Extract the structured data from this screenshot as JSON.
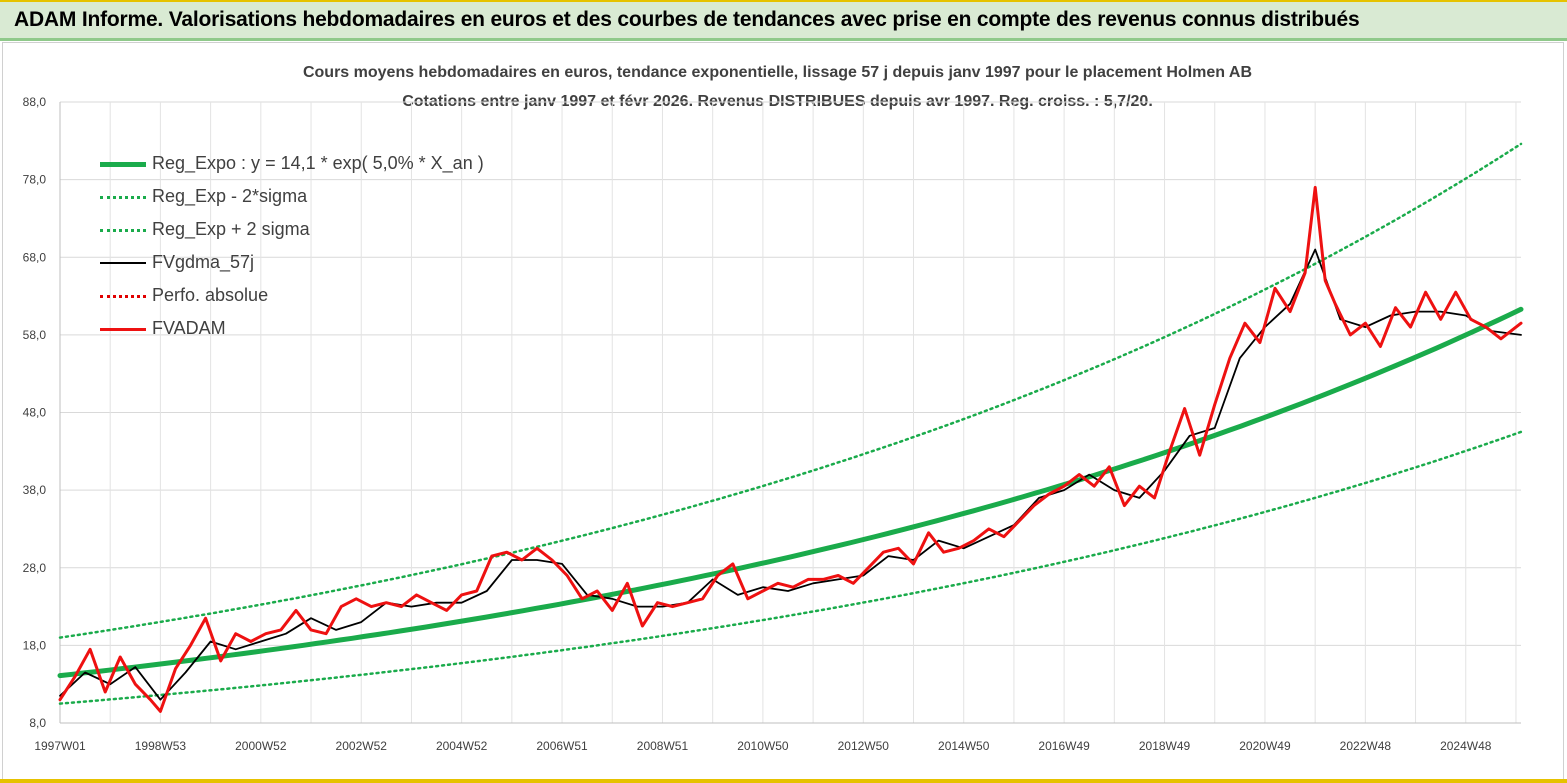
{
  "header": {
    "title": "ADAM Informe. Valorisations hebdomadaires en euros et des courbes de tendances avec prise en compte des revenus connus distribués"
  },
  "chart_data": {
    "type": "line",
    "title_line1": "Cours moyens hebdomadaires en euros, tendance exponentielle, lissage 57 j depuis janv 1997 pour le placement Holmen AB",
    "title_line2": "Cotations entre janv 1997 et févr 2026. Revenus DISTRIBUES depuis avr 1997. Reg. croiss. : 5,7/20.",
    "x_range": [
      1997.0,
      2026.1
    ],
    "ylim": [
      8,
      88
    ],
    "y_ticks": [
      "8,0",
      "18,0",
      "28,0",
      "38,0",
      "48,0",
      "58,0",
      "68,0",
      "78,0",
      "88,0"
    ],
    "x_ticks": [
      {
        "label": "1997W01",
        "x": 1997.0
      },
      {
        "label": "1998W53",
        "x": 1999.0
      },
      {
        "label": "2000W52",
        "x": 2001.0
      },
      {
        "label": "2002W52",
        "x": 2003.0
      },
      {
        "label": "2004W52",
        "x": 2005.0
      },
      {
        "label": "2006W51",
        "x": 2007.0
      },
      {
        "label": "2008W51",
        "x": 2009.0
      },
      {
        "label": "2010W50",
        "x": 2011.0
      },
      {
        "label": "2012W50",
        "x": 2013.0
      },
      {
        "label": "2014W50",
        "x": 2015.0
      },
      {
        "label": "2016W49",
        "x": 2017.0
      },
      {
        "label": "2018W49",
        "x": 2019.0
      },
      {
        "label": "2020W49",
        "x": 2021.0
      },
      {
        "label": "2022W48",
        "x": 2023.0
      },
      {
        "label": "2024W48",
        "x": 2025.0
      }
    ],
    "grid": true,
    "legend_position": "top-left",
    "series": [
      {
        "name": "Reg_Expo : y = 14,1 * exp( 5,0% *  X_an )",
        "color": "#1aab4b",
        "style": "solid-thick",
        "x": [
          1997,
          1999,
          2001,
          2003,
          2005,
          2007,
          2009,
          2011,
          2013,
          2015,
          2017,
          2019,
          2021,
          2023,
          2025,
          2026.1
        ],
        "y": [
          14.1,
          15.6,
          17.2,
          19.0,
          21.0,
          23.2,
          25.6,
          28.3,
          31.3,
          34.5,
          38.2,
          42.1,
          46.6,
          51.5,
          56.9,
          61.3
        ]
      },
      {
        "name": "Reg_Exp - 2*sigma",
        "color": "#1aab4b",
        "style": "dotted",
        "x": [
          1997,
          1999,
          2001,
          2003,
          2005,
          2007,
          2009,
          2011,
          2013,
          2015,
          2017,
          2019,
          2021,
          2023,
          2025,
          2026.1
        ],
        "y": [
          10.5,
          11.6,
          12.8,
          14.1,
          15.6,
          17.2,
          19.0,
          21.0,
          23.2,
          25.6,
          28.3,
          31.3,
          34.5,
          38.2,
          42.2,
          45.5
        ]
      },
      {
        "name": "Reg_Exp + 2 sigma",
        "color": "#1aab4b",
        "style": "dotted",
        "x": [
          1997,
          1999,
          2001,
          2003,
          2005,
          2007,
          2009,
          2011,
          2013,
          2015,
          2017,
          2019,
          2021,
          2023,
          2025,
          2026.1
        ],
        "y": [
          19.0,
          21.0,
          23.2,
          25.6,
          28.3,
          31.3,
          34.6,
          38.2,
          42.2,
          46.6,
          51.5,
          56.9,
          62.9,
          69.5,
          76.8,
          82.6
        ]
      },
      {
        "name": "FVgdma_57j",
        "color": "#000000",
        "style": "solid-thin",
        "x": [
          1997,
          1997.5,
          1998,
          1998.5,
          1999,
          1999.5,
          2000,
          2000.5,
          2001,
          2001.5,
          2002,
          2002.5,
          2003,
          2003.5,
          2004,
          2004.5,
          2005,
          2005.5,
          2006,
          2006.5,
          2007,
          2007.5,
          2008,
          2008.5,
          2009,
          2009.5,
          2010,
          2010.5,
          2011,
          2011.5,
          2012,
          2012.5,
          2013,
          2013.5,
          2014,
          2014.5,
          2015,
          2015.5,
          2016,
          2016.5,
          2017,
          2017.5,
          2018,
          2018.5,
          2019,
          2019.5,
          2020,
          2020.5,
          2021,
          2021.5,
          2022,
          2022.5,
          2023,
          2023.5,
          2024,
          2024.5,
          2025,
          2025.5,
          2026.1
        ],
        "y": [
          11.5,
          14.5,
          13.0,
          15.2,
          11.0,
          14.5,
          18.5,
          17.5,
          18.5,
          19.5,
          21.5,
          20.0,
          21.0,
          23.5,
          23.0,
          23.5,
          23.5,
          25.0,
          29.0,
          29.0,
          28.5,
          24.5,
          24.0,
          23.0,
          23.0,
          23.5,
          26.5,
          24.5,
          25.5,
          25.0,
          26.0,
          26.5,
          27.0,
          29.5,
          29.0,
          31.5,
          30.5,
          32.0,
          33.5,
          37.0,
          38.0,
          40.0,
          38.0,
          37.0,
          40.5,
          45.0,
          46.0,
          55.0,
          59.0,
          62.0,
          69.0,
          60.0,
          59.0,
          60.5,
          61.0,
          61.0,
          60.5,
          58.5,
          58.0
        ]
      },
      {
        "name": "Perfo. absolue",
        "color": "#e00000",
        "style": "dotted",
        "x": [],
        "y": []
      },
      {
        "name": "FVADAM",
        "color": "#ee1111",
        "style": "solid-thick",
        "x": [
          1997,
          1997.3,
          1997.6,
          1997.9,
          1998.2,
          1998.5,
          1998.8,
          1999.0,
          1999.3,
          1999.6,
          1999.9,
          2000.2,
          2000.5,
          2000.8,
          2001.1,
          2001.4,
          2001.7,
          2002.0,
          2002.3,
          2002.6,
          2002.9,
          2003.2,
          2003.5,
          2003.8,
          2004.1,
          2004.4,
          2004.7,
          2005.0,
          2005.3,
          2005.6,
          2005.9,
          2006.2,
          2006.5,
          2006.8,
          2007.1,
          2007.4,
          2007.7,
          2008.0,
          2008.3,
          2008.6,
          2008.9,
          2009.2,
          2009.5,
          2009.8,
          2010.1,
          2010.4,
          2010.7,
          2011.0,
          2011.3,
          2011.6,
          2011.9,
          2012.2,
          2012.5,
          2012.8,
          2013.1,
          2013.4,
          2013.7,
          2014.0,
          2014.3,
          2014.6,
          2014.9,
          2015.2,
          2015.5,
          2015.8,
          2016.1,
          2016.4,
          2016.7,
          2017.0,
          2017.3,
          2017.6,
          2017.9,
          2018.2,
          2018.5,
          2018.8,
          2019.1,
          2019.4,
          2019.7,
          2020.0,
          2020.3,
          2020.6,
          2020.9,
          2021.2,
          2021.5,
          2021.8,
          2022.0,
          2022.2,
          2022.4,
          2022.7,
          2023.0,
          2023.3,
          2023.6,
          2023.9,
          2024.2,
          2024.5,
          2024.8,
          2025.1,
          2025.4,
          2025.7,
          2026.1
        ],
        "y": [
          11.0,
          14.0,
          17.5,
          12.0,
          16.5,
          13.0,
          11.0,
          9.5,
          15.0,
          18.0,
          21.5,
          16.0,
          19.5,
          18.5,
          19.5,
          20.0,
          22.5,
          20.0,
          19.5,
          23.0,
          24.0,
          23.0,
          23.5,
          23.0,
          24.5,
          23.5,
          22.5,
          24.5,
          25.0,
          29.5,
          30.0,
          29.0,
          30.5,
          29.0,
          27.0,
          24.0,
          25.0,
          22.5,
          26.0,
          20.5,
          23.5,
          23.0,
          23.5,
          24.0,
          27.0,
          28.5,
          24.0,
          25.0,
          26.0,
          25.5,
          26.5,
          26.5,
          27.0,
          26.0,
          28.0,
          30.0,
          30.5,
          28.5,
          32.5,
          30.0,
          30.5,
          31.5,
          33.0,
          32.0,
          34.0,
          36.0,
          37.5,
          38.5,
          40.0,
          38.5,
          41.0,
          36.0,
          38.5,
          37.0,
          43.0,
          48.5,
          42.5,
          49.0,
          55.0,
          59.5,
          57.0,
          64.0,
          61.0,
          66.0,
          77.0,
          65.0,
          62.0,
          58.0,
          59.5,
          56.5,
          61.5,
          59.0,
          63.5,
          60.0,
          63.5,
          60.0,
          59.0,
          57.5,
          59.5
        ]
      }
    ]
  }
}
